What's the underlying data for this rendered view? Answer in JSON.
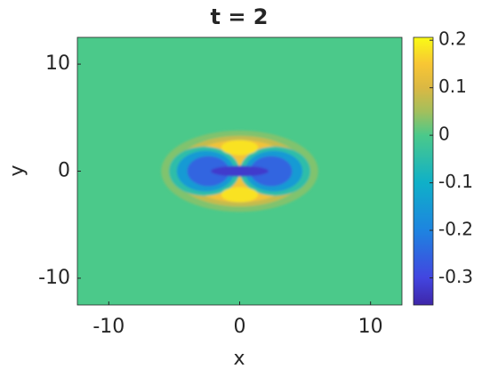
{
  "chart_data": {
    "type": "contourf",
    "title": "t = 2",
    "xlabel": "x",
    "ylabel": "y",
    "xlim": [
      -12.4,
      12.4
    ],
    "ylim": [
      -12.5,
      12.5
    ],
    "xticks": [
      -10,
      0,
      10
    ],
    "yticks": [
      -10,
      0,
      10
    ],
    "background_value": 0,
    "regions": [
      {
        "value": 0.03,
        "cx": 0,
        "cy": 0,
        "rx": 6,
        "ry": 3.8
      },
      {
        "value": 0.08,
        "cx": 0,
        "cy": 0,
        "rx": 5.1,
        "ry": 3.3
      },
      {
        "value": 0.14,
        "cx": 0,
        "cy": 0,
        "rx": 4.4,
        "ry": 2.9
      },
      {
        "value": -0.05,
        "cx": -2.7,
        "cy": 0,
        "rx": 2.7,
        "ry": 2.3
      },
      {
        "value": -0.05,
        "cx": 2.7,
        "cy": 0,
        "rx": 2.7,
        "ry": 2.3
      },
      {
        "value": -0.15,
        "cx": -2.6,
        "cy": 0,
        "rx": 2.2,
        "ry": 1.9
      },
      {
        "value": -0.15,
        "cx": 2.6,
        "cy": 0,
        "rx": 2.2,
        "ry": 1.9
      },
      {
        "value": -0.25,
        "cx": -2.4,
        "cy": 0,
        "rx": 1.6,
        "ry": 1.4
      },
      {
        "value": -0.25,
        "cx": 2.4,
        "cy": 0,
        "rx": 1.6,
        "ry": 1.4
      },
      {
        "value": -0.32,
        "cx": 0,
        "cy": 0,
        "rx": 2.2,
        "ry": 0.5
      },
      {
        "value": 0.18,
        "cx": 0,
        "cy": 2.2,
        "rx": 1.4,
        "ry": 0.7
      },
      {
        "value": 0.18,
        "cx": 0,
        "cy": -2.2,
        "rx": 1.4,
        "ry": 0.7
      }
    ],
    "clim": [
      -0.357,
      0.206
    ],
    "cticks": [
      -0.3,
      -0.2,
      -0.1,
      0,
      0.1,
      0.2
    ],
    "colormap": [
      {
        "value": -0.357,
        "color": "#3e26a8"
      },
      {
        "value": -0.3,
        "color": "#4245e0"
      },
      {
        "value": -0.2,
        "color": "#1e84e0"
      },
      {
        "value": -0.1,
        "color": "#0fb0c8"
      },
      {
        "value": 0,
        "color": "#4bc98a"
      },
      {
        "value": 0.05,
        "color": "#a3bf5c"
      },
      {
        "value": 0.1,
        "color": "#dbb843"
      },
      {
        "value": 0.15,
        "color": "#f8c634"
      },
      {
        "value": 0.206,
        "color": "#f9fb15"
      }
    ]
  }
}
